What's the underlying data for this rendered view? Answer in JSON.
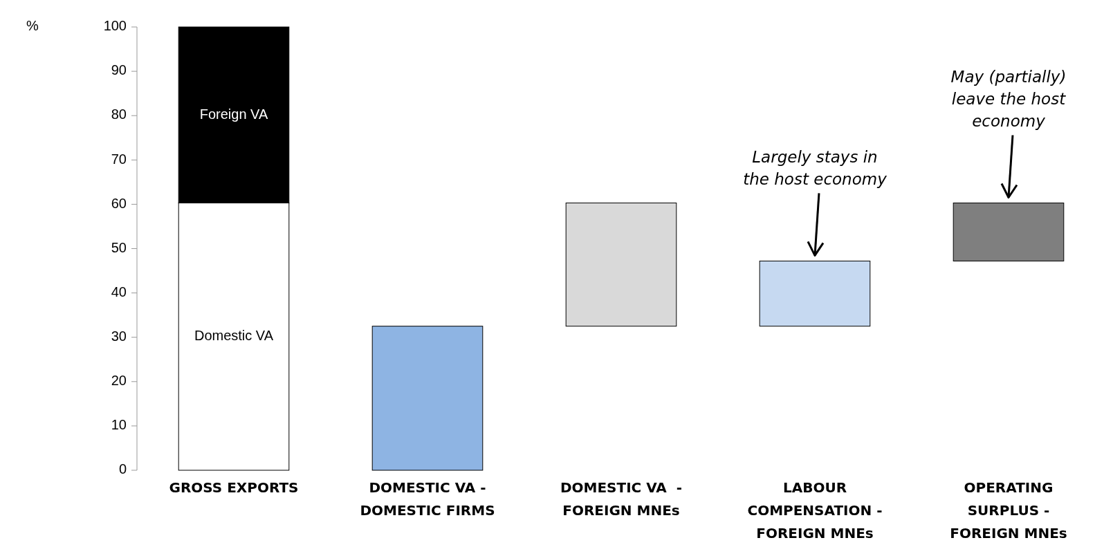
{
  "chart_data": {
    "type": "bar",
    "stacked": true,
    "ylabel": "%",
    "categories": [
      "GROSS EXPORTS",
      "DOMESTIC VA -\nDOMESTIC FIRMS",
      "DOMESTIC VA  -\nFOREIGN MNEs",
      "LABOUR\nCOMPENSATION -\nFOREIGN MNEs",
      "OPERATING\nSURPLUS -\nFOREIGN MNEs"
    ],
    "series": [
      {
        "name": "Domestic VA",
        "color": "#ffffff",
        "values": [
          60.3,
          null,
          null,
          null,
          null
        ]
      },
      {
        "name": "Foreign VA",
        "color": "#000000",
        "values": [
          39.7,
          null,
          null,
          null,
          null
        ]
      },
      {
        "colors": [
          null,
          "#8eb4e3",
          "#d9d9d9",
          "#c6d9f1",
          "#7f7f7f"
        ],
        "values": [
          null,
          32.5,
          27.8,
          14.7,
          13.1
        ],
        "base": [
          null,
          0,
          32.5,
          32.5,
          47.2
        ]
      }
    ],
    "ylim": [
      0,
      100
    ],
    "yticks": [
      0,
      10,
      20,
      30,
      40,
      50,
      60,
      70,
      80,
      90,
      100
    ],
    "grid": false,
    "annotations": [
      {
        "text": "Largely stays in\nthe host economy",
        "x": "LABOUR\nCOMPENSATION -\nFOREIGN MNEs",
        "y": 47.2
      },
      {
        "text": "May (partially)\nleave the host\neconomy",
        "x": "OPERATING\nSURPLUS -\nFOREIGN MNEs",
        "y": 60.3
      }
    ]
  }
}
